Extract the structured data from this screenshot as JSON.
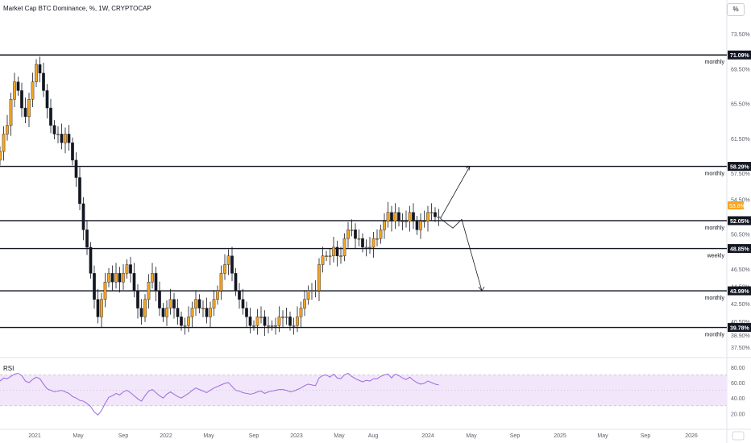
{
  "header": {
    "title": "Market Cap BTC Dominance, %, 1W, CRYPTOCAP",
    "unit_button": "%"
  },
  "rsi": {
    "label": "RSI",
    "ticks": [
      "80.00",
      "60.00",
      "40.00",
      "20.00"
    ]
  },
  "colors": {
    "bull": "#f6a623",
    "bear": "#131722",
    "level_line": "#131722",
    "rsi_line": "#9c6ade",
    "rsi_band": "#f2e6fb",
    "grid": "#f0f3fa"
  },
  "chart_data": [
    {
      "type": "candlestick",
      "title": "Market Cap BTC Dominance, %, 1W, CRYPTOCAP",
      "x_tick_labels": [
        "2021",
        "May",
        "Sep",
        "2022",
        "May",
        "Sep",
        "2023",
        "May",
        "Aug",
        "2024",
        "May",
        "Sep",
        "2025",
        "May",
        "Sep",
        "2026"
      ],
      "y_tick_labels": [
        "73.50%",
        "69.50%",
        "65.50%",
        "61.50%",
        "57.50%",
        "54.50%",
        "50.50%",
        "46.50%",
        "44.50%",
        "42.50%",
        "40.50%",
        "38.90%",
        "37.50%"
      ],
      "ylim": [
        36.5,
        75
      ],
      "price_label": "53.8%",
      "levels": [
        {
          "value": 71.09,
          "label": "71.09%",
          "note": "monthly"
        },
        {
          "value": 58.29,
          "label": "58.29%",
          "note": "monthly"
        },
        {
          "value": 52.05,
          "label": "52.05%",
          "note": "monthly"
        },
        {
          "value": 48.85,
          "label": "48.85%",
          "note": "weekly"
        },
        {
          "value": 43.99,
          "label": "43.99%",
          "note": "monthly"
        },
        {
          "value": 39.78,
          "label": "39.78%",
          "note": "monthly"
        }
      ],
      "closes": [
        60,
        62,
        63,
        66,
        68,
        67,
        65,
        64,
        66,
        68,
        70,
        69,
        67,
        65,
        63,
        62,
        62,
        61,
        62,
        61,
        59,
        57,
        54,
        51,
        49,
        46,
        43,
        41,
        43,
        45,
        46,
        45,
        46,
        45,
        46,
        47,
        46,
        44,
        42,
        41,
        43,
        45,
        46,
        44,
        42,
        41,
        42,
        43,
        42,
        41,
        40,
        40,
        41,
        42,
        43,
        42,
        42,
        41,
        42,
        43,
        44,
        46,
        47,
        48,
        46,
        44,
        43,
        42,
        41,
        40,
        40,
        41,
        41,
        40,
        40,
        40,
        40,
        41,
        41,
        41,
        40,
        40,
        41,
        42,
        43,
        44,
        44,
        44,
        47,
        48,
        48,
        48,
        49,
        48,
        48,
        50,
        51,
        51,
        50,
        50,
        49,
        49,
        49,
        50,
        50,
        51,
        52,
        53,
        52,
        53,
        52,
        52,
        52,
        53,
        52,
        51,
        52,
        52,
        53,
        53,
        52.5,
        52.5
      ],
      "projection": {
        "from": 52.3,
        "up_target": 58.29,
        "down_steps": [
          51.2,
          52.2,
          43.99
        ]
      },
      "rsi_values": [
        62,
        66,
        65,
        68,
        71,
        72,
        69,
        62,
        60,
        64,
        67,
        65,
        58,
        52,
        50,
        48,
        49,
        50,
        48,
        46,
        42,
        40,
        37,
        36,
        33,
        29,
        22,
        18,
        24,
        33,
        41,
        43,
        46,
        44,
        48,
        50,
        47,
        43,
        39,
        36,
        43,
        49,
        51,
        47,
        43,
        40,
        45,
        48,
        45,
        42,
        40,
        43,
        46,
        50,
        53,
        51,
        49,
        47,
        50,
        53,
        55,
        57,
        59,
        60,
        55,
        50,
        49,
        47,
        46,
        45,
        46,
        48,
        49,
        46,
        48,
        49,
        50,
        51,
        51,
        50,
        48,
        49,
        51,
        53,
        56,
        58,
        57,
        56,
        66,
        69,
        70,
        67,
        71,
        66,
        65,
        70,
        72,
        68,
        65,
        63,
        61,
        63,
        62,
        65,
        65,
        68,
        70,
        71,
        66,
        71,
        69,
        66,
        64,
        67,
        63,
        60,
        58,
        59,
        62,
        60,
        58,
        57
      ]
    }
  ]
}
